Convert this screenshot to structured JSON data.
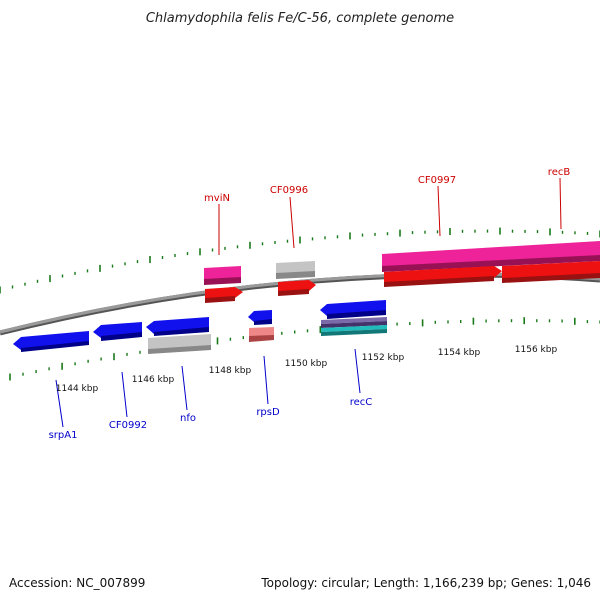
{
  "title": "Chlamydophila felis Fe/C-56, complete genome",
  "footer": {
    "accession": "Accession: NC_007899",
    "summary": "Topology: circular; Length: 1,166,239 bp; Genes: 1,046"
  },
  "colors": {
    "forward_label": "#cc0000",
    "reverse_label": "#0000cc",
    "tick": "#1a7a1a",
    "backbone": "#808080",
    "cds_forward": "#ee1111",
    "cds_reverse": "#1111ee",
    "rna": "#bbbbbb",
    "pink": "#ee2299",
    "salmon": "#ee8888",
    "stripe_purple": "#6a4a9a",
    "stripe_teal": "#22bbbb"
  },
  "scale_labels": [
    "1144 kbp",
    "1146 kbp",
    "1148 kbp",
    "1150 kbp",
    "1152 kbp",
    "1154 kbp",
    "1156 kbp"
  ],
  "forward_genes": [
    {
      "label": "mviN"
    },
    {
      "label": "CF0996"
    },
    {
      "label": "CF0997"
    },
    {
      "label": "recB"
    }
  ],
  "reverse_genes": [
    {
      "label": "srpA1"
    },
    {
      "label": "CF0992"
    },
    {
      "label": "nfo"
    },
    {
      "label": "rpsD"
    },
    {
      "label": "recC"
    }
  ]
}
